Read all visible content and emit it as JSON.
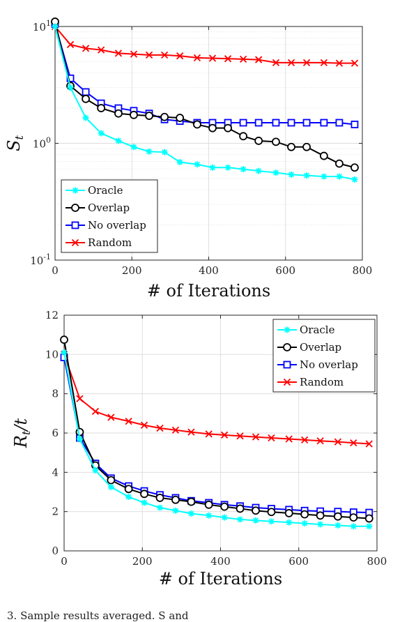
{
  "chart_data": [
    {
      "type": "line",
      "yscale": "log",
      "title": "",
      "xlabel": "# of Iterations",
      "ylabel": "S",
      "ylabel_sub": "t",
      "xlim": [
        0,
        800
      ],
      "ylim": [
        0.1,
        10
      ],
      "xticks": [
        0,
        200,
        400,
        600,
        800
      ],
      "xtick_labels": [
        "0",
        "200",
        "400",
        "600",
        "800"
      ],
      "yticks": [
        0.1,
        1,
        10
      ],
      "ytick_labels": [
        {
          "base": "10",
          "exp": "-1"
        },
        {
          "base": "10",
          "exp": "0"
        },
        {
          "base": "10",
          "exp": "1"
        }
      ],
      "grid": true,
      "legend_position": "bottom-left",
      "x": [
        0,
        40,
        80,
        120,
        165,
        205,
        245,
        285,
        325,
        370,
        410,
        450,
        490,
        530,
        575,
        615,
        655,
        700,
        740,
        780
      ],
      "series": [
        {
          "name": "Oracle",
          "color": "#00ffff",
          "marker": "star",
          "values": [
            10,
            3.0,
            1.65,
            1.22,
            1.05,
            0.93,
            0.85,
            0.84,
            0.69,
            0.66,
            0.62,
            0.62,
            0.6,
            0.58,
            0.56,
            0.54,
            0.53,
            0.52,
            0.52,
            0.49
          ]
        },
        {
          "name": "Overlap",
          "color": "#000000",
          "marker": "circle",
          "values": [
            11,
            3.1,
            2.4,
            2.0,
            1.8,
            1.75,
            1.72,
            1.68,
            1.65,
            1.45,
            1.35,
            1.35,
            1.15,
            1.05,
            1.03,
            0.93,
            0.93,
            0.78,
            0.67,
            0.62
          ]
        },
        {
          "name": "No overlap",
          "color": "#0000ff",
          "marker": "square",
          "values": [
            10.5,
            3.6,
            2.75,
            2.2,
            2.0,
            1.9,
            1.8,
            1.6,
            1.55,
            1.5,
            1.5,
            1.5,
            1.5,
            1.5,
            1.5,
            1.5,
            1.5,
            1.5,
            1.5,
            1.45
          ]
        },
        {
          "name": "Random",
          "color": "#ff0000",
          "marker": "x",
          "values": [
            10,
            7.0,
            6.5,
            6.3,
            5.9,
            5.8,
            5.7,
            5.7,
            5.6,
            5.4,
            5.35,
            5.3,
            5.25,
            5.2,
            4.9,
            4.9,
            4.9,
            4.9,
            4.85,
            4.85
          ]
        }
      ]
    },
    {
      "type": "line",
      "title": "",
      "xlabel": "# of Iterations",
      "ylabel": "R",
      "ylabel_sub": "t",
      "ylabel_suffix": "/t",
      "xlim": [
        0,
        800
      ],
      "ylim": [
        0,
        12
      ],
      "xticks": [
        0,
        200,
        400,
        600,
        800
      ],
      "xtick_labels": [
        "0",
        "200",
        "400",
        "600",
        "800"
      ],
      "yticks": [
        0,
        2,
        4,
        6,
        8,
        10,
        12
      ],
      "ytick_labels": [
        "0",
        "2",
        "4",
        "6",
        "8",
        "10",
        "12"
      ],
      "grid": true,
      "legend_position": "top-right",
      "x": [
        0,
        40,
        80,
        120,
        165,
        205,
        245,
        285,
        325,
        370,
        410,
        450,
        490,
        530,
        575,
        615,
        655,
        700,
        740,
        780
      ],
      "series": [
        {
          "name": "Oracle",
          "color": "#00ffff",
          "marker": "star",
          "values": [
            10.1,
            5.7,
            4.1,
            3.25,
            2.75,
            2.45,
            2.2,
            2.05,
            1.9,
            1.8,
            1.7,
            1.6,
            1.55,
            1.5,
            1.45,
            1.4,
            1.35,
            1.3,
            1.25,
            1.25
          ]
        },
        {
          "name": "Overlap",
          "color": "#000000",
          "marker": "circle",
          "values": [
            10.75,
            6.05,
            4.35,
            3.6,
            3.15,
            2.9,
            2.7,
            2.6,
            2.5,
            2.35,
            2.25,
            2.15,
            2.05,
            1.98,
            1.92,
            1.86,
            1.8,
            1.75,
            1.7,
            1.65
          ]
        },
        {
          "name": "No overlap",
          "color": "#0000ff",
          "marker": "square",
          "values": [
            9.85,
            5.75,
            4.45,
            3.7,
            3.3,
            3.05,
            2.85,
            2.7,
            2.55,
            2.45,
            2.35,
            2.28,
            2.2,
            2.15,
            2.1,
            2.05,
            2.02,
            2.0,
            1.97,
            1.95
          ]
        },
        {
          "name": "Random",
          "color": "#ff0000",
          "marker": "x",
          "values": [
            10.0,
            7.75,
            7.1,
            6.8,
            6.6,
            6.4,
            6.25,
            6.15,
            6.05,
            5.95,
            5.9,
            5.85,
            5.8,
            5.75,
            5.7,
            5.65,
            5.6,
            5.55,
            5.5,
            5.45
          ]
        }
      ]
    }
  ],
  "caption": "3. Sample results averaged. S    and"
}
